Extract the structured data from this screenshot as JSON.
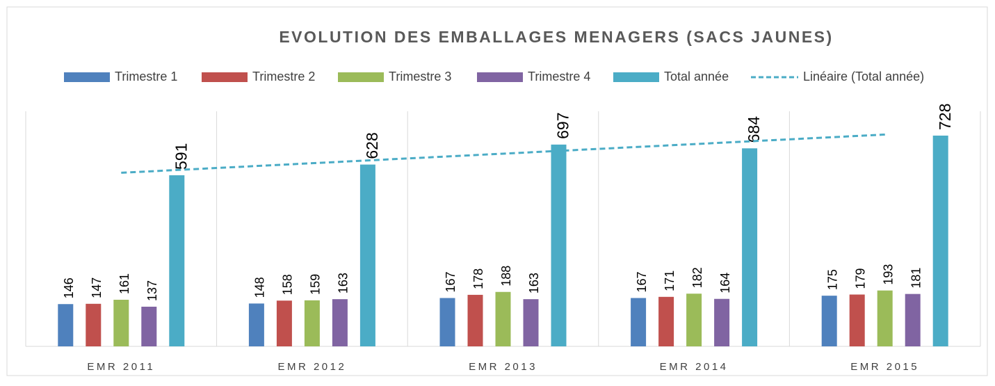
{
  "chart_data": {
    "type": "bar",
    "title": "EVOLUTION DES EMBALLAGES MENAGERS (SACS JAUNES)",
    "categories": [
      "EMR 2011",
      "EMR 2012",
      "EMR 2013",
      "EMR 2014",
      "EMR 2015"
    ],
    "series": [
      {
        "name": "Trimestre 1",
        "color": "#4f81bd",
        "values": [
          146,
          148,
          167,
          167,
          175
        ]
      },
      {
        "name": "Trimestre 2",
        "color": "#c0504d",
        "values": [
          147,
          158,
          178,
          171,
          179
        ]
      },
      {
        "name": "Trimestre 3",
        "color": "#9bbb59",
        "values": [
          161,
          159,
          188,
          182,
          193
        ]
      },
      {
        "name": "Trimestre 4",
        "color": "#8064a2",
        "values": [
          137,
          163,
          163,
          164,
          181
        ]
      },
      {
        "name": "Total année",
        "color": "#4bacc6",
        "values": [
          591,
          628,
          697,
          684,
          728
        ]
      }
    ],
    "trendline": {
      "name": "Linéaire (Total année)",
      "color": "#4bacc6",
      "type": "line",
      "dashed": true,
      "values": [
        599.6,
        632.6,
        665.6,
        698.6,
        731.6
      ]
    },
    "ylim": [
      0,
      800
    ],
    "grid": "vertical",
    "legend": "top"
  }
}
